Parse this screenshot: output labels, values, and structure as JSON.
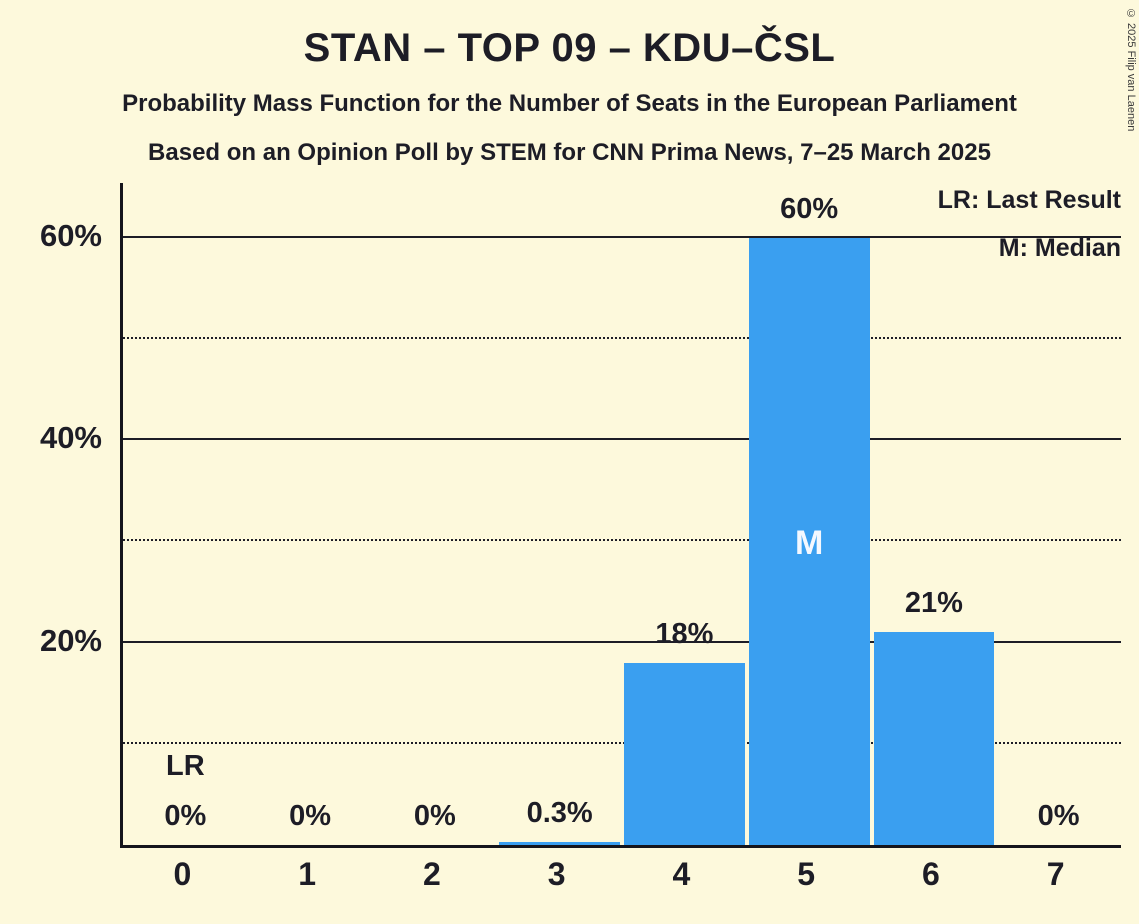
{
  "header": {
    "title": "STAN – TOP 09 – KDU–ČSL",
    "subtitle1": "Probability Mass Function for the Number of Seats in the European Parliament",
    "subtitle2": "Based on an Opinion Poll by STEM for CNN Prima News, 7–25 March 2025"
  },
  "legend": {
    "lr": "LR: Last Result",
    "m": "M: Median"
  },
  "copyright": "© 2025 Filip van Laenen",
  "chart_data": {
    "type": "bar",
    "title": "STAN – TOP 09 – KDU–ČSL",
    "categories": [
      "0",
      "1",
      "2",
      "3",
      "4",
      "5",
      "6",
      "7"
    ],
    "values": [
      0,
      0,
      0,
      0.3,
      18,
      60,
      21,
      0
    ],
    "bar_labels": [
      "0%",
      "0%",
      "0%",
      "0.3%",
      "18%",
      "60%",
      "21%",
      "0%"
    ],
    "median_category": "5",
    "median_marker": "M",
    "last_result_category": "0",
    "last_result_marker": "LR",
    "ylim": [
      0,
      65.4
    ],
    "yticks_solid": [
      20,
      40,
      60
    ],
    "ytick_labels": [
      "20%",
      "40%",
      "60%"
    ],
    "yticks_dotted": [
      10,
      30,
      50
    ],
    "bar_color": "#3a9ff0",
    "grid": true,
    "legend_position": "top-right"
  }
}
